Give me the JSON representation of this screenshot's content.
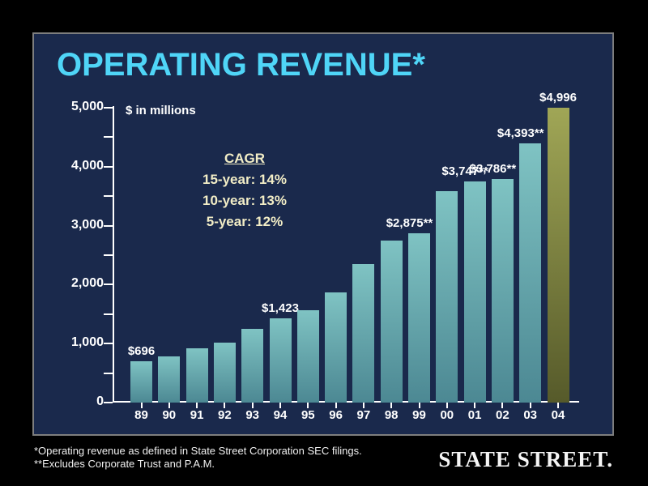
{
  "slide": {
    "title": "OPERATING REVENUE*",
    "cagr": {
      "heading": "CAGR",
      "lines": [
        "15-year: 14%",
        "10-year: 13%",
        "5-year: 12%"
      ]
    }
  },
  "chart_data": {
    "type": "bar",
    "title": "OPERATING REVENUE*",
    "unit_note": "$ in millions",
    "categories": [
      "89",
      "90",
      "91",
      "92",
      "93",
      "94",
      "95",
      "96",
      "97",
      "98",
      "99",
      "00",
      "01",
      "02",
      "03",
      "04"
    ],
    "values": [
      696,
      790,
      915,
      1020,
      1245,
      1423,
      1565,
      1870,
      2345,
      2750,
      2875,
      3580,
      3747,
      3786,
      4393,
      4996
    ],
    "bar_labels": {
      "89": "$696",
      "94": "$1,423",
      "99": "$2,875**",
      "01": "$3,747**",
      "02": "$3,786**",
      "03": "$4,393**",
      "04": "$4,996"
    },
    "ylim": [
      0,
      5000
    ],
    "ytick_labels": [
      "0",
      "1,000",
      "2,000",
      "3,000",
      "4,000",
      "5,000"
    ],
    "minor_tick_step": 500,
    "grid": "off",
    "legend": "none",
    "highlight_category": "04",
    "bar_gradient": [
      "#7fc3c3",
      "#4c8893"
    ],
    "highlight_gradient": [
      "#a0a656",
      "#565a2a"
    ],
    "annotations": [
      "CAGR",
      "15-year: 14%",
      "10-year: 13%",
      "5-year: 12%"
    ]
  },
  "footer": {
    "footnotes": [
      "*Operating revenue as defined in State Street Corporation SEC filings.",
      "**Excludes Corporate Trust and P.A.M."
    ],
    "logo_text": "STATE STREET."
  },
  "colors": {
    "background": "#1a294c",
    "outer_background": "#000000",
    "title_text": "#4fd5f7",
    "cagr_text": "#f2edc6",
    "axis": "#ffffff",
    "bar_teal": "#5f9fa8",
    "bar_olive": "#8f954a"
  }
}
